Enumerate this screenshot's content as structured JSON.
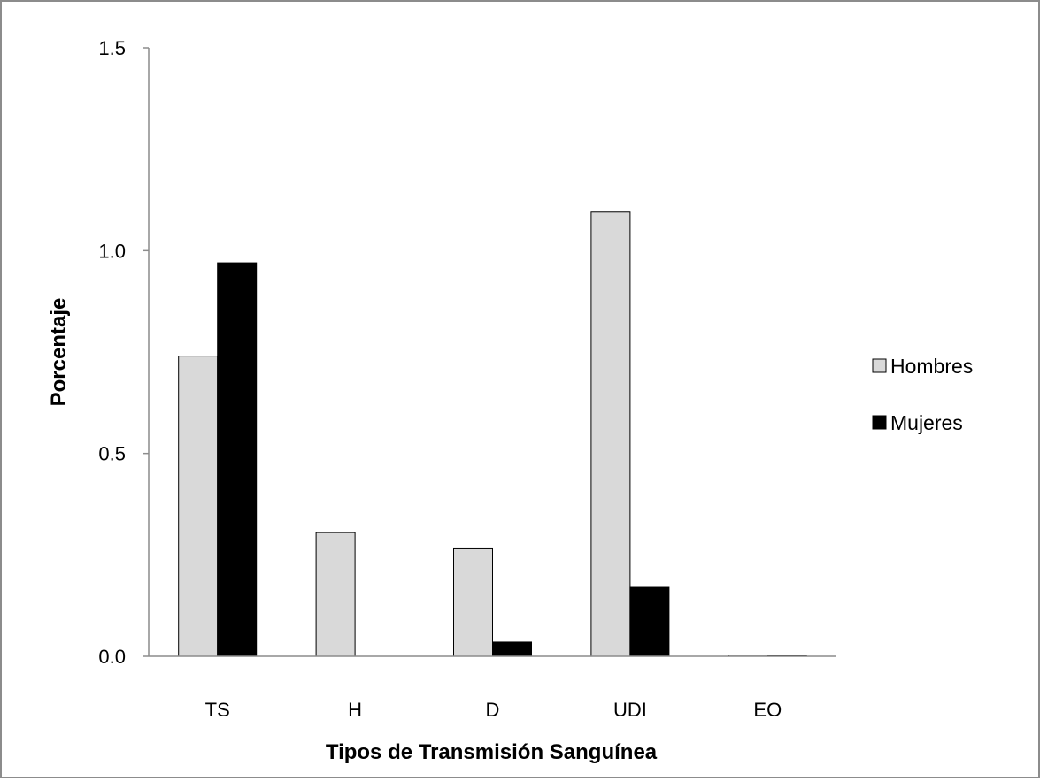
{
  "chart_data": {
    "type": "bar",
    "title": "",
    "xlabel": "Tipos de Transmisión Sanguínea",
    "ylabel": "Porcentaje",
    "categories": [
      "TS",
      "H",
      "D",
      "UDI",
      "EO"
    ],
    "series": [
      {
        "name": "Hombres",
        "values": [
          0.74,
          0.305,
          0.265,
          1.095,
          0.003
        ],
        "color": "#d9d9d9"
      },
      {
        "name": "Mujeres",
        "values": [
          0.97,
          0.0,
          0.035,
          0.17,
          0.003
        ],
        "color": "#000000"
      }
    ],
    "ylim": [
      0,
      1.5
    ],
    "yticks": [
      "0.0",
      "0.5",
      "1.0",
      "1.5"
    ],
    "grid": false,
    "legend": "right"
  }
}
